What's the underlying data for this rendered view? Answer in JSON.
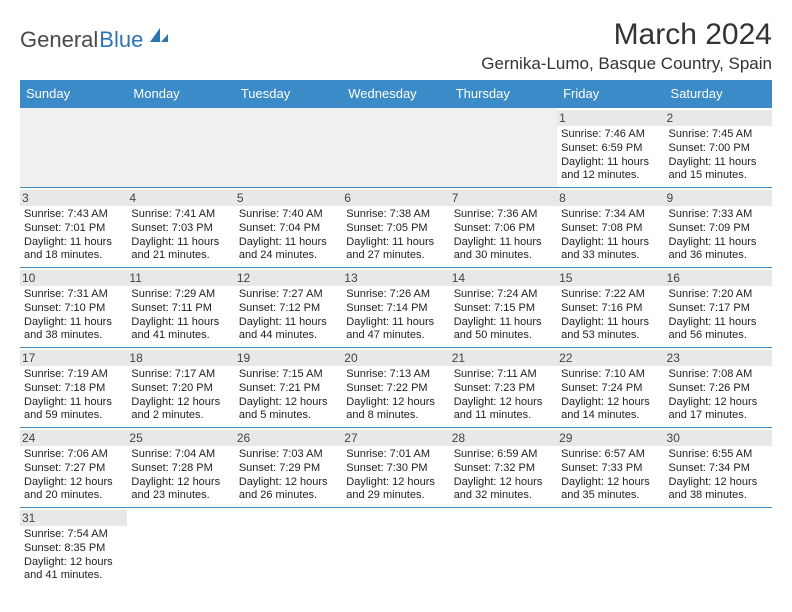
{
  "logo": {
    "word1": "General",
    "word2": "Blue",
    "brand_color": "#2e74b5"
  },
  "title": "March 2024",
  "location": "Gernika-Lumo, Basque Country, Spain",
  "header_bg": "#3b8bc9",
  "border_color": "#3b8bc9",
  "daynum_bg": "#e8e8e8",
  "days_of_week": [
    "Sunday",
    "Monday",
    "Tuesday",
    "Wednesday",
    "Thursday",
    "Friday",
    "Saturday"
  ],
  "weeks": [
    [
      null,
      null,
      null,
      null,
      null,
      {
        "n": "1",
        "sr": "Sunrise: 7:46 AM",
        "ss": "Sunset: 6:59 PM",
        "d1": "Daylight: 11 hours",
        "d2": "and 12 minutes."
      },
      {
        "n": "2",
        "sr": "Sunrise: 7:45 AM",
        "ss": "Sunset: 7:00 PM",
        "d1": "Daylight: 11 hours",
        "d2": "and 15 minutes."
      }
    ],
    [
      {
        "n": "3",
        "sr": "Sunrise: 7:43 AM",
        "ss": "Sunset: 7:01 PM",
        "d1": "Daylight: 11 hours",
        "d2": "and 18 minutes."
      },
      {
        "n": "4",
        "sr": "Sunrise: 7:41 AM",
        "ss": "Sunset: 7:03 PM",
        "d1": "Daylight: 11 hours",
        "d2": "and 21 minutes."
      },
      {
        "n": "5",
        "sr": "Sunrise: 7:40 AM",
        "ss": "Sunset: 7:04 PM",
        "d1": "Daylight: 11 hours",
        "d2": "and 24 minutes."
      },
      {
        "n": "6",
        "sr": "Sunrise: 7:38 AM",
        "ss": "Sunset: 7:05 PM",
        "d1": "Daylight: 11 hours",
        "d2": "and 27 minutes."
      },
      {
        "n": "7",
        "sr": "Sunrise: 7:36 AM",
        "ss": "Sunset: 7:06 PM",
        "d1": "Daylight: 11 hours",
        "d2": "and 30 minutes."
      },
      {
        "n": "8",
        "sr": "Sunrise: 7:34 AM",
        "ss": "Sunset: 7:08 PM",
        "d1": "Daylight: 11 hours",
        "d2": "and 33 minutes."
      },
      {
        "n": "9",
        "sr": "Sunrise: 7:33 AM",
        "ss": "Sunset: 7:09 PM",
        "d1": "Daylight: 11 hours",
        "d2": "and 36 minutes."
      }
    ],
    [
      {
        "n": "10",
        "sr": "Sunrise: 7:31 AM",
        "ss": "Sunset: 7:10 PM",
        "d1": "Daylight: 11 hours",
        "d2": "and 38 minutes."
      },
      {
        "n": "11",
        "sr": "Sunrise: 7:29 AM",
        "ss": "Sunset: 7:11 PM",
        "d1": "Daylight: 11 hours",
        "d2": "and 41 minutes."
      },
      {
        "n": "12",
        "sr": "Sunrise: 7:27 AM",
        "ss": "Sunset: 7:12 PM",
        "d1": "Daylight: 11 hours",
        "d2": "and 44 minutes."
      },
      {
        "n": "13",
        "sr": "Sunrise: 7:26 AM",
        "ss": "Sunset: 7:14 PM",
        "d1": "Daylight: 11 hours",
        "d2": "and 47 minutes."
      },
      {
        "n": "14",
        "sr": "Sunrise: 7:24 AM",
        "ss": "Sunset: 7:15 PM",
        "d1": "Daylight: 11 hours",
        "d2": "and 50 minutes."
      },
      {
        "n": "15",
        "sr": "Sunrise: 7:22 AM",
        "ss": "Sunset: 7:16 PM",
        "d1": "Daylight: 11 hours",
        "d2": "and 53 minutes."
      },
      {
        "n": "16",
        "sr": "Sunrise: 7:20 AM",
        "ss": "Sunset: 7:17 PM",
        "d1": "Daylight: 11 hours",
        "d2": "and 56 minutes."
      }
    ],
    [
      {
        "n": "17",
        "sr": "Sunrise: 7:19 AM",
        "ss": "Sunset: 7:18 PM",
        "d1": "Daylight: 11 hours",
        "d2": "and 59 minutes."
      },
      {
        "n": "18",
        "sr": "Sunrise: 7:17 AM",
        "ss": "Sunset: 7:20 PM",
        "d1": "Daylight: 12 hours",
        "d2": "and 2 minutes."
      },
      {
        "n": "19",
        "sr": "Sunrise: 7:15 AM",
        "ss": "Sunset: 7:21 PM",
        "d1": "Daylight: 12 hours",
        "d2": "and 5 minutes."
      },
      {
        "n": "20",
        "sr": "Sunrise: 7:13 AM",
        "ss": "Sunset: 7:22 PM",
        "d1": "Daylight: 12 hours",
        "d2": "and 8 minutes."
      },
      {
        "n": "21",
        "sr": "Sunrise: 7:11 AM",
        "ss": "Sunset: 7:23 PM",
        "d1": "Daylight: 12 hours",
        "d2": "and 11 minutes."
      },
      {
        "n": "22",
        "sr": "Sunrise: 7:10 AM",
        "ss": "Sunset: 7:24 PM",
        "d1": "Daylight: 12 hours",
        "d2": "and 14 minutes."
      },
      {
        "n": "23",
        "sr": "Sunrise: 7:08 AM",
        "ss": "Sunset: 7:26 PM",
        "d1": "Daylight: 12 hours",
        "d2": "and 17 minutes."
      }
    ],
    [
      {
        "n": "24",
        "sr": "Sunrise: 7:06 AM",
        "ss": "Sunset: 7:27 PM",
        "d1": "Daylight: 12 hours",
        "d2": "and 20 minutes."
      },
      {
        "n": "25",
        "sr": "Sunrise: 7:04 AM",
        "ss": "Sunset: 7:28 PM",
        "d1": "Daylight: 12 hours",
        "d2": "and 23 minutes."
      },
      {
        "n": "26",
        "sr": "Sunrise: 7:03 AM",
        "ss": "Sunset: 7:29 PM",
        "d1": "Daylight: 12 hours",
        "d2": "and 26 minutes."
      },
      {
        "n": "27",
        "sr": "Sunrise: 7:01 AM",
        "ss": "Sunset: 7:30 PM",
        "d1": "Daylight: 12 hours",
        "d2": "and 29 minutes."
      },
      {
        "n": "28",
        "sr": "Sunrise: 6:59 AM",
        "ss": "Sunset: 7:32 PM",
        "d1": "Daylight: 12 hours",
        "d2": "and 32 minutes."
      },
      {
        "n": "29",
        "sr": "Sunrise: 6:57 AM",
        "ss": "Sunset: 7:33 PM",
        "d1": "Daylight: 12 hours",
        "d2": "and 35 minutes."
      },
      {
        "n": "30",
        "sr": "Sunrise: 6:55 AM",
        "ss": "Sunset: 7:34 PM",
        "d1": "Daylight: 12 hours",
        "d2": "and 38 minutes."
      }
    ],
    [
      {
        "n": "31",
        "sr": "Sunrise: 7:54 AM",
        "ss": "Sunset: 8:35 PM",
        "d1": "Daylight: 12 hours",
        "d2": "and 41 minutes."
      },
      null,
      null,
      null,
      null,
      null,
      null
    ]
  ]
}
